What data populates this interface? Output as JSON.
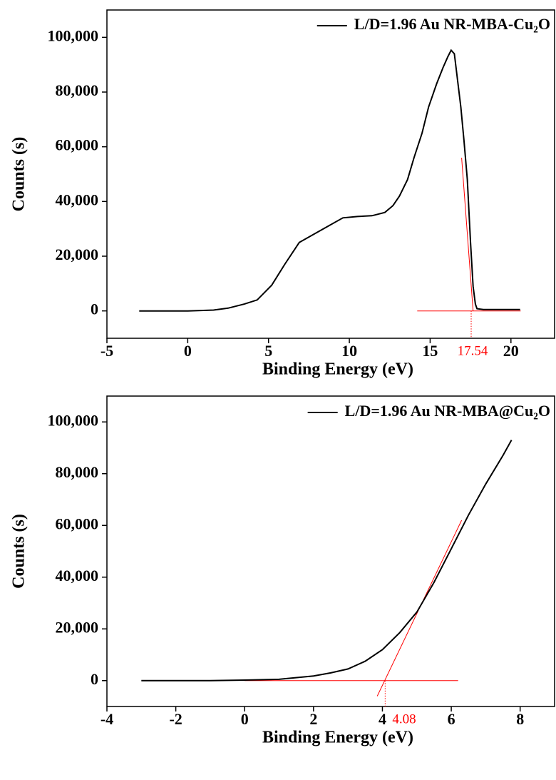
{
  "chart_data": [
    {
      "type": "line",
      "xlabel": "Binding Energy (eV)",
      "ylabel": "Counts (s)",
      "xlim": [
        -5,
        22.7
      ],
      "ylim": [
        -10000,
        110000
      ],
      "xticks": [
        -5,
        0,
        5,
        10,
        15,
        20
      ],
      "yticks": [
        0,
        {
          "value": 20000,
          "label": "20,000"
        },
        {
          "value": 40000,
          "label": "40,000"
        },
        {
          "value": 60000,
          "label": "60,000"
        },
        {
          "value": 80000,
          "label": "80,000"
        },
        {
          "value": 100000,
          "label": "100,000"
        }
      ],
      "legend": "upper right",
      "series": [
        {
          "name": "L/D=1.96 Au NR-MBA-Cu₂O",
          "color": "#000000",
          "x": [
            -3,
            0,
            1.6,
            2.5,
            3.5,
            4.3,
            5.2,
            6,
            6.9,
            7.8,
            8.7,
            9.6,
            10.5,
            11.4,
            12.2,
            12.7,
            13.1,
            13.6,
            14,
            14.5,
            14.9,
            15.4,
            15.8,
            16.1,
            16.3,
            16.5,
            16.9,
            17.1,
            17.3,
            17.5,
            17.66,
            17.8,
            17.9,
            18.3,
            19,
            20.57
          ],
          "values": [
            0,
            0,
            300,
            1000,
            2500,
            4000,
            9400,
            17000,
            25000,
            28000,
            31000,
            34000,
            34500,
            34800,
            36000,
            38500,
            42000,
            48000,
            56000,
            65000,
            74500,
            83000,
            89000,
            93000,
            95300,
            94000,
            74500,
            62000,
            48000,
            25000,
            9000,
            2500,
            800,
            500,
            500,
            500
          ]
        }
      ],
      "fits": [
        {
          "color": "#ff0000",
          "x": [
            14.2,
            20.6
          ],
          "values": [
            0,
            0
          ]
        },
        {
          "color": "#ff0000",
          "x": [
            16.95,
            17.66
          ],
          "values": [
            56000,
            0
          ]
        }
      ],
      "edge": {
        "value": 17.54,
        "color": "#ff0000"
      }
    },
    {
      "type": "line",
      "xlabel": "Binding Energy (eV)",
      "ylabel": "Counts (s)",
      "xlim": [
        -4,
        9
      ],
      "ylim": [
        -10000,
        110000
      ],
      "xticks": [
        -4,
        -2,
        0,
        2,
        4,
        6,
        8
      ],
      "yticks": [
        0,
        {
          "value": 20000,
          "label": "20,000"
        },
        {
          "value": 40000,
          "label": "40,000"
        },
        {
          "value": 60000,
          "label": "60,000"
        },
        {
          "value": 80000,
          "label": "80,000"
        },
        {
          "value": 100000,
          "label": "100,000"
        }
      ],
      "legend": "upper right",
      "series": [
        {
          "name": "L/D=1.96 Au NR-MBA@Cu₂O",
          "color": "#000000",
          "x": [
            -3,
            -1,
            0,
            1,
            2,
            2.5,
            3,
            3.5,
            4,
            4.5,
            5,
            5.5,
            6,
            6.5,
            7,
            7.5,
            7.75
          ],
          "values": [
            0,
            0,
            200,
            500,
            1800,
            3000,
            4500,
            7500,
            12000,
            18500,
            26500,
            38000,
            51000,
            64000,
            76000,
            87000,
            93000
          ]
        }
      ],
      "fits": [
        {
          "color": "#ff0000",
          "x": [
            0,
            6.2
          ],
          "values": [
            0,
            0
          ]
        },
        {
          "color": "#ff0000",
          "x": [
            3.85,
            6.3
          ],
          "values": [
            -6000,
            62000
          ]
        }
      ],
      "edge": {
        "value": 4.08,
        "color": "#ff0000"
      }
    }
  ]
}
